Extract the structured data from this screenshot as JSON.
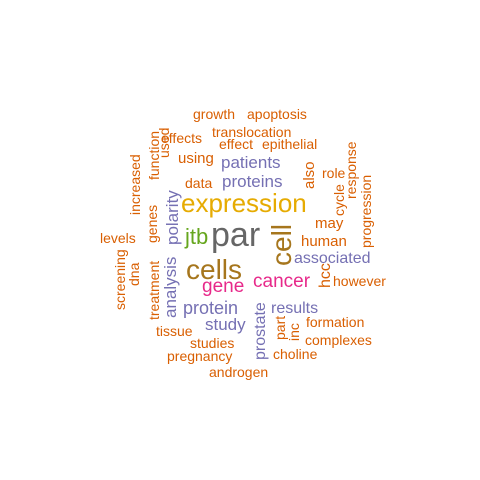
{
  "palette": {
    "orange": "#d95f02",
    "purple": "#7570b3",
    "magenta": "#e7298a",
    "green": "#66a61e",
    "gold": "#e6ab02",
    "brown": "#a6761d",
    "gray": "#666666"
  },
  "words": [
    {
      "text": "growth",
      "color": "orange",
      "vertical": false
    },
    {
      "text": "apoptosis",
      "color": "orange",
      "vertical": false
    },
    {
      "text": "effects",
      "color": "orange",
      "vertical": false
    },
    {
      "text": "translocation",
      "color": "orange",
      "vertical": false
    },
    {
      "text": "effect",
      "color": "orange",
      "vertical": false
    },
    {
      "text": "epithelial",
      "color": "orange",
      "vertical": false
    },
    {
      "text": "using",
      "color": "orange",
      "vertical": false
    },
    {
      "text": "patients",
      "color": "purple",
      "vertical": false
    },
    {
      "text": "data",
      "color": "orange",
      "vertical": false
    },
    {
      "text": "proteins",
      "color": "purple",
      "vertical": false
    },
    {
      "text": "role",
      "color": "orange",
      "vertical": false
    },
    {
      "text": "expression",
      "color": "gold",
      "vertical": false
    },
    {
      "text": "may",
      "color": "orange",
      "vertical": false
    },
    {
      "text": "levels",
      "color": "orange",
      "vertical": false
    },
    {
      "text": "jtb",
      "color": "green",
      "vertical": false
    },
    {
      "text": "par",
      "color": "gray",
      "vertical": false
    },
    {
      "text": "human",
      "color": "orange",
      "vertical": false
    },
    {
      "text": "associated",
      "color": "purple",
      "vertical": false
    },
    {
      "text": "cells",
      "color": "brown",
      "vertical": false
    },
    {
      "text": "cancer",
      "color": "magenta",
      "vertical": false
    },
    {
      "text": "however",
      "color": "orange",
      "vertical": false
    },
    {
      "text": "gene",
      "color": "magenta",
      "vertical": false
    },
    {
      "text": "protein",
      "color": "purple",
      "vertical": false
    },
    {
      "text": "results",
      "color": "purple",
      "vertical": false
    },
    {
      "text": "study",
      "color": "purple",
      "vertical": false
    },
    {
      "text": "formation",
      "color": "orange",
      "vertical": false
    },
    {
      "text": "tissue",
      "color": "orange",
      "vertical": false
    },
    {
      "text": "studies",
      "color": "orange",
      "vertical": false
    },
    {
      "text": "complexes",
      "color": "orange",
      "vertical": false
    },
    {
      "text": "pregnancy",
      "color": "orange",
      "vertical": false
    },
    {
      "text": "choline",
      "color": "orange",
      "vertical": false
    },
    {
      "text": "androgen",
      "color": "orange",
      "vertical": false
    },
    {
      "text": "function",
      "color": "orange",
      "vertical": true
    },
    {
      "text": "used",
      "color": "orange",
      "vertical": true
    },
    {
      "text": "increased",
      "color": "orange",
      "vertical": true
    },
    {
      "text": "genes",
      "color": "orange",
      "vertical": true
    },
    {
      "text": "screening",
      "color": "orange",
      "vertical": true
    },
    {
      "text": "dna",
      "color": "orange",
      "vertical": true
    },
    {
      "text": "treatment",
      "color": "orange",
      "vertical": true
    },
    {
      "text": "analysis",
      "color": "purple",
      "vertical": true
    },
    {
      "text": "polarity",
      "color": "purple",
      "vertical": true
    },
    {
      "text": "also",
      "color": "orange",
      "vertical": true
    },
    {
      "text": "cycle",
      "color": "orange",
      "vertical": true
    },
    {
      "text": "response",
      "color": "orange",
      "vertical": true
    },
    {
      "text": "progression",
      "color": "orange",
      "vertical": true
    },
    {
      "text": "cell",
      "color": "brown",
      "vertical": true
    },
    {
      "text": "hcc",
      "color": "orange",
      "vertical": true
    },
    {
      "text": "part",
      "color": "orange",
      "vertical": true
    },
    {
      "text": "inc",
      "color": "orange",
      "vertical": true
    },
    {
      "text": "prostate",
      "color": "purple",
      "vertical": true
    }
  ]
}
